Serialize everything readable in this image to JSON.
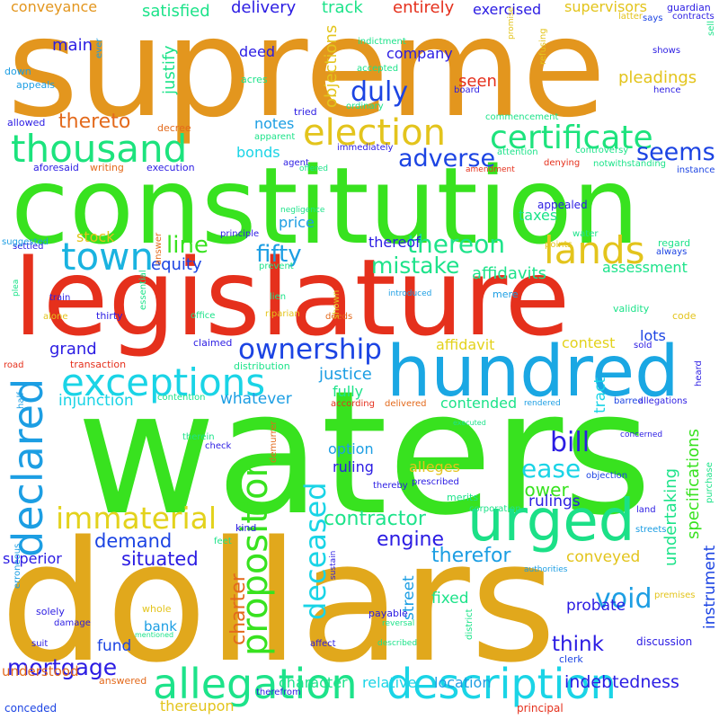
{
  "words": [
    {
      "text": "supreme",
      "color": "#e3961e"
    },
    {
      "text": "constitution",
      "color": "#38e21f"
    },
    {
      "text": "legislature",
      "color": "#e5301c"
    },
    {
      "text": "waters",
      "color": "#38e21f"
    },
    {
      "text": "dollars",
      "color": "#e1a81c"
    },
    {
      "text": "hundred",
      "color": "#1aa7e3"
    },
    {
      "text": "thousand",
      "color": "#1ce37d"
    },
    {
      "text": "election",
      "color": "#e3c41c"
    },
    {
      "text": "certificate",
      "color": "#1de37d"
    },
    {
      "text": "urged",
      "color": "#1be087"
    },
    {
      "text": "lands",
      "color": "#e3c41c"
    },
    {
      "text": "town",
      "color": "#1ab3e0"
    },
    {
      "text": "exceptions",
      "color": "#1ad4e6"
    },
    {
      "text": "allegation",
      "color": "#1de38a"
    },
    {
      "text": "description",
      "color": "#1ad4e6"
    },
    {
      "text": "declared",
      "color": "#1c9ee3"
    },
    {
      "text": "immaterial",
      "color": "#e3d21c"
    },
    {
      "text": "proposition",
      "color": "#38e21f"
    },
    {
      "text": "deceased",
      "color": "#1ad4e6"
    },
    {
      "text": "ownership",
      "color": "#1c44e3"
    },
    {
      "text": "mortgage",
      "color": "#2b1ce3"
    },
    {
      "text": "duly",
      "color": "#1c44e3"
    },
    {
      "text": "adverse",
      "color": "#1c44e3"
    },
    {
      "text": "seems",
      "color": "#1c44e3"
    },
    {
      "text": "thereon",
      "color": "#1de38a"
    },
    {
      "text": "mistake",
      "color": "#1de38a"
    },
    {
      "text": "fifty",
      "color": "#1c9ee3"
    },
    {
      "text": "line",
      "color": "#38e21f"
    },
    {
      "text": "thereto",
      "color": "#e36a1c"
    },
    {
      "text": "main",
      "color": "#2b1ce3"
    },
    {
      "text": "deed",
      "color": "#2b1ce3"
    },
    {
      "text": "company",
      "color": "#2b1ce3"
    },
    {
      "text": "seen",
      "color": "#e5301c"
    },
    {
      "text": "satisfied",
      "color": "#1de38a"
    },
    {
      "text": "delivery",
      "color": "#2b1ce3"
    },
    {
      "text": "track",
      "color": "#1de38a"
    },
    {
      "text": "entirely",
      "color": "#e5301c"
    },
    {
      "text": "exercised",
      "color": "#2b1ce3"
    },
    {
      "text": "supervisors",
      "color": "#e3c41c"
    },
    {
      "text": "conveyance",
      "color": "#e3961e"
    },
    {
      "text": "justify",
      "color": "#1de38a"
    },
    {
      "text": "objections",
      "color": "#e3c41c"
    },
    {
      "text": "pleadings",
      "color": "#e3c41c"
    },
    {
      "text": "notes",
      "color": "#1c9ee3"
    },
    {
      "text": "bonds",
      "color": "#1ad4e6"
    },
    {
      "text": "grand",
      "color": "#2b1ce3"
    },
    {
      "text": "equity",
      "color": "#1c44e3"
    },
    {
      "text": "stock",
      "color": "#e3c41c"
    },
    {
      "text": "price",
      "color": "#1c9ee3"
    },
    {
      "text": "thereof",
      "color": "#2b1ce3"
    },
    {
      "text": "affidavits",
      "color": "#1de38a"
    },
    {
      "text": "assessment",
      "color": "#1de38a"
    },
    {
      "text": "taxes",
      "color": "#1de38a"
    },
    {
      "text": "affidavit",
      "color": "#e3d21c"
    },
    {
      "text": "contest",
      "color": "#e3d21c"
    },
    {
      "text": "lots",
      "color": "#1c44e3"
    },
    {
      "text": "justice",
      "color": "#1c9ee3"
    },
    {
      "text": "fully",
      "color": "#1de38a"
    },
    {
      "text": "whatever",
      "color": "#1c9ee3"
    },
    {
      "text": "injunction",
      "color": "#1ad4e6"
    },
    {
      "text": "contended",
      "color": "#1de38a"
    },
    {
      "text": "bill",
      "color": "#2b1ce3"
    },
    {
      "text": "ease",
      "color": "#1ad4e6"
    },
    {
      "text": "undertaking",
      "color": "#1de38a"
    },
    {
      "text": "specifications",
      "color": "#38e21f"
    },
    {
      "text": "contractor",
      "color": "#1de38a"
    },
    {
      "text": "engine",
      "color": "#2b1ce3"
    },
    {
      "text": "option",
      "color": "#1c9ee3"
    },
    {
      "text": "ruling",
      "color": "#2b1ce3"
    },
    {
      "text": "alleges",
      "color": "#e3c41c"
    },
    {
      "text": "lower",
      "color": "#38e21f"
    },
    {
      "text": "rulings",
      "color": "#2b1ce3"
    },
    {
      "text": "therefor",
      "color": "#1c9ee3"
    },
    {
      "text": "conveyed",
      "color": "#e3c41c"
    },
    {
      "text": "void",
      "color": "#1c9ee3"
    },
    {
      "text": "think",
      "color": "#2b1ce3"
    },
    {
      "text": "demand",
      "color": "#1c44e3"
    },
    {
      "text": "situated",
      "color": "#2b1ce3"
    },
    {
      "text": "charter",
      "color": "#e36a1c"
    },
    {
      "text": "superior",
      "color": "#2b1ce3"
    },
    {
      "text": "probate",
      "color": "#2b1ce3"
    },
    {
      "text": "fixed",
      "color": "#1de38a"
    },
    {
      "text": "bank",
      "color": "#1c9ee3"
    },
    {
      "text": "fund",
      "color": "#1c44e3"
    },
    {
      "text": "street",
      "color": "#1c9ee3"
    },
    {
      "text": "instrument",
      "color": "#1c44e3"
    },
    {
      "text": "indebtedness",
      "color": "#2b1ce3"
    },
    {
      "text": "character",
      "color": "#1de38a"
    },
    {
      "text": "relative",
      "color": "#1ad4e6"
    },
    {
      "text": "location",
      "color": "#1c9ee3"
    },
    {
      "text": "thereupon",
      "color": "#e3c41c"
    },
    {
      "text": "understood",
      "color": "#e36a1c"
    },
    {
      "text": "answered",
      "color": "#e36a1c"
    },
    {
      "text": "conceded",
      "color": "#1c44e3"
    },
    {
      "text": "principal",
      "color": "#e5301c"
    },
    {
      "text": "clerk",
      "color": "#1c44e3"
    },
    {
      "text": "discussion",
      "color": "#2b1ce3"
    },
    {
      "text": "tract",
      "color": "#1ad4e6"
    },
    {
      "text": "transaction",
      "color": "#e5301c"
    },
    {
      "text": "distribution",
      "color": "#1de38a"
    },
    {
      "text": "appealed",
      "color": "#2b1ce3"
    },
    {
      "text": "execution",
      "color": "#2b1ce3"
    },
    {
      "text": "aforesaid",
      "color": "#2b1ce3"
    },
    {
      "text": "writing",
      "color": "#e36a1c"
    },
    {
      "text": "decree",
      "color": "#e36a1c"
    },
    {
      "text": "allowed",
      "color": "#2b1ce3"
    },
    {
      "text": "appeals",
      "color": "#1c9ee3"
    },
    {
      "text": "down",
      "color": "#1c9ee3"
    },
    {
      "text": "acres",
      "color": "#1de38a"
    },
    {
      "text": "tried",
      "color": "#2b1ce3"
    },
    {
      "text": "ordinary",
      "color": "#1de38a"
    },
    {
      "text": "accepted",
      "color": "#1de38a"
    },
    {
      "text": "indictment",
      "color": "#1de38a"
    },
    {
      "text": "commencement",
      "color": "#1de38a"
    },
    {
      "text": "controversy",
      "color": "#1de38a"
    },
    {
      "text": "notwithstanding",
      "color": "#1de38a"
    },
    {
      "text": "attention",
      "color": "#1de38a"
    },
    {
      "text": "denying",
      "color": "#e5301c"
    },
    {
      "text": "immediately",
      "color": "#2b1ce3"
    },
    {
      "text": "agent",
      "color": "#2b1ce3"
    },
    {
      "text": "offered",
      "color": "#1de38a"
    },
    {
      "text": "amendment",
      "color": "#e5301c"
    },
    {
      "text": "instance",
      "color": "#1c44e3"
    },
    {
      "text": "negligence",
      "color": "#1de38a"
    },
    {
      "text": "principle",
      "color": "#2b1ce3"
    },
    {
      "text": "water",
      "color": "#1de38a"
    },
    {
      "text": "points",
      "color": "#e3c41c"
    },
    {
      "text": "regard",
      "color": "#1de38a"
    },
    {
      "text": "always",
      "color": "#1c44e3"
    },
    {
      "text": "prevent",
      "color": "#1de38a"
    },
    {
      "text": "lien",
      "color": "#1de38a"
    },
    {
      "text": "riparian",
      "color": "#e3c41c"
    },
    {
      "text": "introduced",
      "color": "#1c9ee3"
    },
    {
      "text": "mere",
      "color": "#1c9ee3"
    },
    {
      "text": "validity",
      "color": "#1de38a"
    },
    {
      "text": "code",
      "color": "#e3c41c"
    },
    {
      "text": "sold",
      "color": "#2b1ce3"
    },
    {
      "text": "heard",
      "color": "#2b1ce3"
    },
    {
      "text": "barred",
      "color": "#1c44e3"
    },
    {
      "text": "allegations",
      "color": "#2b1ce3"
    },
    {
      "text": "claimed",
      "color": "#2b1ce3"
    },
    {
      "text": "office",
      "color": "#1de38a"
    },
    {
      "text": "deeds",
      "color": "#e36a1c"
    },
    {
      "text": "thirty",
      "color": "#2b1ce3"
    },
    {
      "text": "alone",
      "color": "#e3c41c"
    },
    {
      "text": "train",
      "color": "#2b1ce3"
    },
    {
      "text": "essential",
      "color": "#1de38a"
    },
    {
      "text": "shown",
      "color": "#e3c41c"
    },
    {
      "text": "settled",
      "color": "#2b1ce3"
    },
    {
      "text": "answer",
      "color": "#e36a1c"
    },
    {
      "text": "suggested",
      "color": "#1c9ee3"
    },
    {
      "text": "plea",
      "color": "#1de38a"
    },
    {
      "text": "road",
      "color": "#e5301c"
    },
    {
      "text": "half",
      "color": "#1c9ee3"
    },
    {
      "text": "contention",
      "color": "#1de38a"
    },
    {
      "text": "according",
      "color": "#e5301c"
    },
    {
      "text": "delivered",
      "color": "#e36a1c"
    },
    {
      "text": "executed",
      "color": "#1de38a"
    },
    {
      "text": "rendered",
      "color": "#1c9ee3"
    },
    {
      "text": "therein",
      "color": "#1de38a"
    },
    {
      "text": "check",
      "color": "#2b1ce3"
    },
    {
      "text": "concerned",
      "color": "#2b1ce3"
    },
    {
      "text": "demurrer",
      "color": "#e36a1c"
    },
    {
      "text": "prescribed",
      "color": "#2b1ce3"
    },
    {
      "text": "objection",
      "color": "#1c44e3"
    },
    {
      "text": "merits",
      "color": "#1de38a"
    },
    {
      "text": "corporation",
      "color": "#1de38a"
    },
    {
      "text": "thereby",
      "color": "#2b1ce3"
    },
    {
      "text": "purchase",
      "color": "#1de38a"
    },
    {
      "text": "land",
      "color": "#2b1ce3"
    },
    {
      "text": "streets",
      "color": "#1c9ee3"
    },
    {
      "text": "erroneous",
      "color": "#1c9ee3"
    },
    {
      "text": "kind",
      "color": "#2b1ce3"
    },
    {
      "text": "feet",
      "color": "#1de38a"
    },
    {
      "text": "sustain",
      "color": "#2b1ce3"
    },
    {
      "text": "authorities",
      "color": "#1c9ee3"
    },
    {
      "text": "premises",
      "color": "#e3c41c"
    },
    {
      "text": "whole",
      "color": "#e3c41c"
    },
    {
      "text": "solely",
      "color": "#2b1ce3"
    },
    {
      "text": "damage",
      "color": "#2b1ce3"
    },
    {
      "text": "mentioned",
      "color": "#1de38a"
    },
    {
      "text": "suit",
      "color": "#2b1ce3"
    },
    {
      "text": "payable",
      "color": "#2b1ce3"
    },
    {
      "text": "reversal",
      "color": "#1de38a"
    },
    {
      "text": "affect",
      "color": "#2b1ce3"
    },
    {
      "text": "described",
      "color": "#1de38a"
    },
    {
      "text": "district",
      "color": "#1de38a"
    },
    {
      "text": "therefrom",
      "color": "#2b1ce3"
    },
    {
      "text": "latter",
      "color": "#e3c41c"
    },
    {
      "text": "says",
      "color": "#1c44e3"
    },
    {
      "text": "guardian",
      "color": "#2b1ce3"
    },
    {
      "text": "contracts",
      "color": "#2b1ce3"
    },
    {
      "text": "sell",
      "color": "#1de38a"
    },
    {
      "text": "ever",
      "color": "#1c9ee3"
    },
    {
      "text": "promise",
      "color": "#e3c41c"
    },
    {
      "text": "refusing",
      "color": "#e3c41c"
    },
    {
      "text": "shows",
      "color": "#2b1ce3"
    },
    {
      "text": "board",
      "color": "#2b1ce3"
    },
    {
      "text": "hence",
      "color": "#2b1ce3"
    },
    {
      "text": "apparent",
      "color": "#1de38a"
    }
  ]
}
